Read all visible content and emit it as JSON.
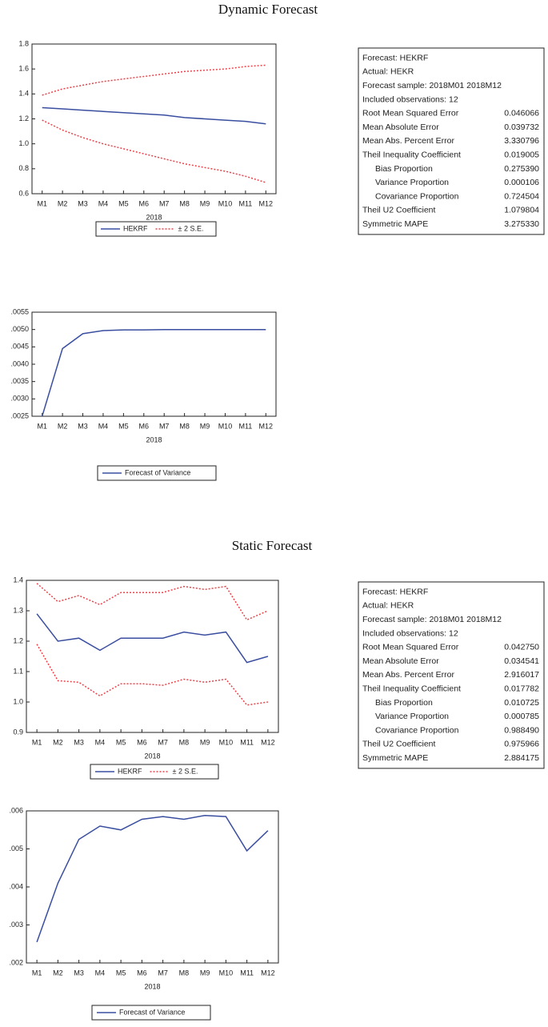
{
  "headings": [
    "Dynamic Forecast",
    "Static Forecast"
  ],
  "chart_data": [
    {
      "type": "line",
      "categories": [
        "M1",
        "M2",
        "M3",
        "M4",
        "M5",
        "M6",
        "M7",
        "M8",
        "M9",
        "M10",
        "M11",
        "M12"
      ],
      "x_label": "2018",
      "ylim": [
        0.6,
        1.8
      ],
      "yticks": [
        0.6,
        0.8,
        {
          "value": 1,
          "label": "1.0"
        },
        1.2,
        1.4,
        1.6,
        1.8
      ],
      "series": [
        {
          "name": "HEKRF",
          "color": "#3a4ea0",
          "values": [
            1.29,
            1.28,
            1.27,
            1.26,
            1.25,
            1.24,
            1.23,
            1.21,
            1.2,
            1.19,
            1.18,
            1.16
          ]
        },
        {
          "name": "± 2 S.E.",
          "color": "#e8434a",
          "dash": true,
          "upper": [
            1.39,
            1.44,
            1.47,
            1.5,
            1.52,
            1.54,
            1.56,
            1.58,
            1.59,
            1.6,
            1.62,
            1.63
          ],
          "lower": [
            1.19,
            1.11,
            1.05,
            1.0,
            0.96,
            0.92,
            0.88,
            0.84,
            0.81,
            0.78,
            0.74,
            0.69
          ]
        }
      ]
    },
    {
      "type": "line",
      "categories": [
        "M1",
        "M2",
        "M3",
        "M4",
        "M5",
        "M6",
        "M7",
        "M8",
        "M9",
        "M10",
        "M11",
        "M12"
      ],
      "x_label": "2018",
      "ylim": [
        0.0025,
        0.0055
      ],
      "yticks": [
        {
          "value": 0.0025,
          "label": ".0025"
        },
        {
          "value": 0.003,
          "label": ".0030"
        },
        {
          "value": 0.0035,
          "label": ".0035"
        },
        {
          "value": 0.004,
          "label": ".0040"
        },
        {
          "value": 0.0045,
          "label": ".0045"
        },
        {
          "value": 0.005,
          "label": ".0050"
        },
        {
          "value": 0.0055,
          "label": ".0055"
        }
      ],
      "series": [
        {
          "name": "Forecast of Variance",
          "color": "#3a4ea0",
          "values": [
            0.0025,
            0.00445,
            0.00488,
            0.00497,
            0.00499,
            0.00499,
            0.005,
            0.005,
            0.005,
            0.005,
            0.005,
            0.005
          ]
        }
      ]
    },
    {
      "type": "line",
      "categories": [
        "M1",
        "M2",
        "M3",
        "M4",
        "M5",
        "M6",
        "M7",
        "M8",
        "M9",
        "M10",
        "M11",
        "M12"
      ],
      "x_label": "2018",
      "ylim": [
        0.9,
        1.4
      ],
      "yticks": [
        0.9,
        {
          "value": 1,
          "label": "1.0"
        },
        1.1,
        1.2,
        1.3,
        1.4
      ],
      "series": [
        {
          "name": "HEKRF",
          "color": "#3a4ea0",
          "values": [
            1.29,
            1.2,
            1.21,
            1.17,
            1.21,
            1.21,
            1.21,
            1.23,
            1.22,
            1.23,
            1.13,
            1.15
          ]
        },
        {
          "name": "± 2 S.E.",
          "color": "#e8434a",
          "dash": true,
          "upper": [
            1.39,
            1.33,
            1.35,
            1.32,
            1.36,
            1.36,
            1.36,
            1.38,
            1.37,
            1.38,
            1.27,
            1.3
          ],
          "lower": [
            1.19,
            1.07,
            1.065,
            1.02,
            1.06,
            1.06,
            1.055,
            1.075,
            1.065,
            1.075,
            0.99,
            1.0
          ]
        }
      ]
    },
    {
      "type": "line",
      "categories": [
        "M1",
        "M2",
        "M3",
        "M4",
        "M5",
        "M6",
        "M7",
        "M8",
        "M9",
        "M10",
        "M11",
        "M12"
      ],
      "x_label": "2018",
      "ylim": [
        0.002,
        0.006
      ],
      "yticks": [
        {
          "value": 0.002,
          "label": ".002"
        },
        {
          "value": 0.003,
          "label": ".003"
        },
        {
          "value": 0.004,
          "label": ".004"
        },
        {
          "value": 0.005,
          "label": ".005"
        },
        {
          "value": 0.006,
          "label": ".006"
        }
      ],
      "series": [
        {
          "name": "Forecast of Variance",
          "color": "#3a4ea0",
          "values": [
            0.00255,
            0.0041,
            0.00525,
            0.0056,
            0.0055,
            0.00578,
            0.00585,
            0.00578,
            0.00588,
            0.00585,
            0.00495,
            0.00548
          ]
        }
      ]
    }
  ],
  "stats_tables": [
    {
      "rows": [
        [
          "Forecast: HEKRF"
        ],
        [
          "Actual: HEKR"
        ],
        [
          "Forecast sample: 2018M01 2018M12"
        ],
        [
          "Included observations: 12"
        ],
        [
          "Root Mean Squared Error",
          "0.046066"
        ],
        [
          "Mean Absolute Error",
          "0.039732"
        ],
        [
          "Mean Abs. Percent Error",
          "3.330796"
        ],
        [
          "Theil Inequality Coefficient",
          "0.019005"
        ],
        [
          "Bias Proportion",
          "0.275390"
        ],
        [
          "Variance Proportion",
          "0.000106"
        ],
        [
          "Covariance Proportion",
          "0.724504"
        ],
        [
          "Theil U2 Coefficient",
          "1.079804"
        ],
        [
          "Symmetric MAPE",
          "3.275330"
        ]
      ]
    },
    {
      "rows": [
        [
          "Forecast: HEKRF"
        ],
        [
          "Actual: HEKR"
        ],
        [
          "Forecast sample: 2018M01 2018M12"
        ],
        [
          "Included observations: 12"
        ],
        [
          "Root Mean Squared Error",
          "0.042750"
        ],
        [
          "Mean Absolute Error",
          "0.034541"
        ],
        [
          "Mean Abs. Percent Error",
          "2.916017"
        ],
        [
          "Theil Inequality Coefficient",
          "0.017782"
        ],
        [
          "Bias Proportion",
          "0.010725"
        ],
        [
          "Variance Proportion",
          "0.000785"
        ],
        [
          "Covariance Proportion",
          "0.988490"
        ],
        [
          "Theil U2 Coefficient",
          "0.975966"
        ],
        [
          "Symmetric MAPE",
          "2.884175"
        ]
      ]
    }
  ]
}
